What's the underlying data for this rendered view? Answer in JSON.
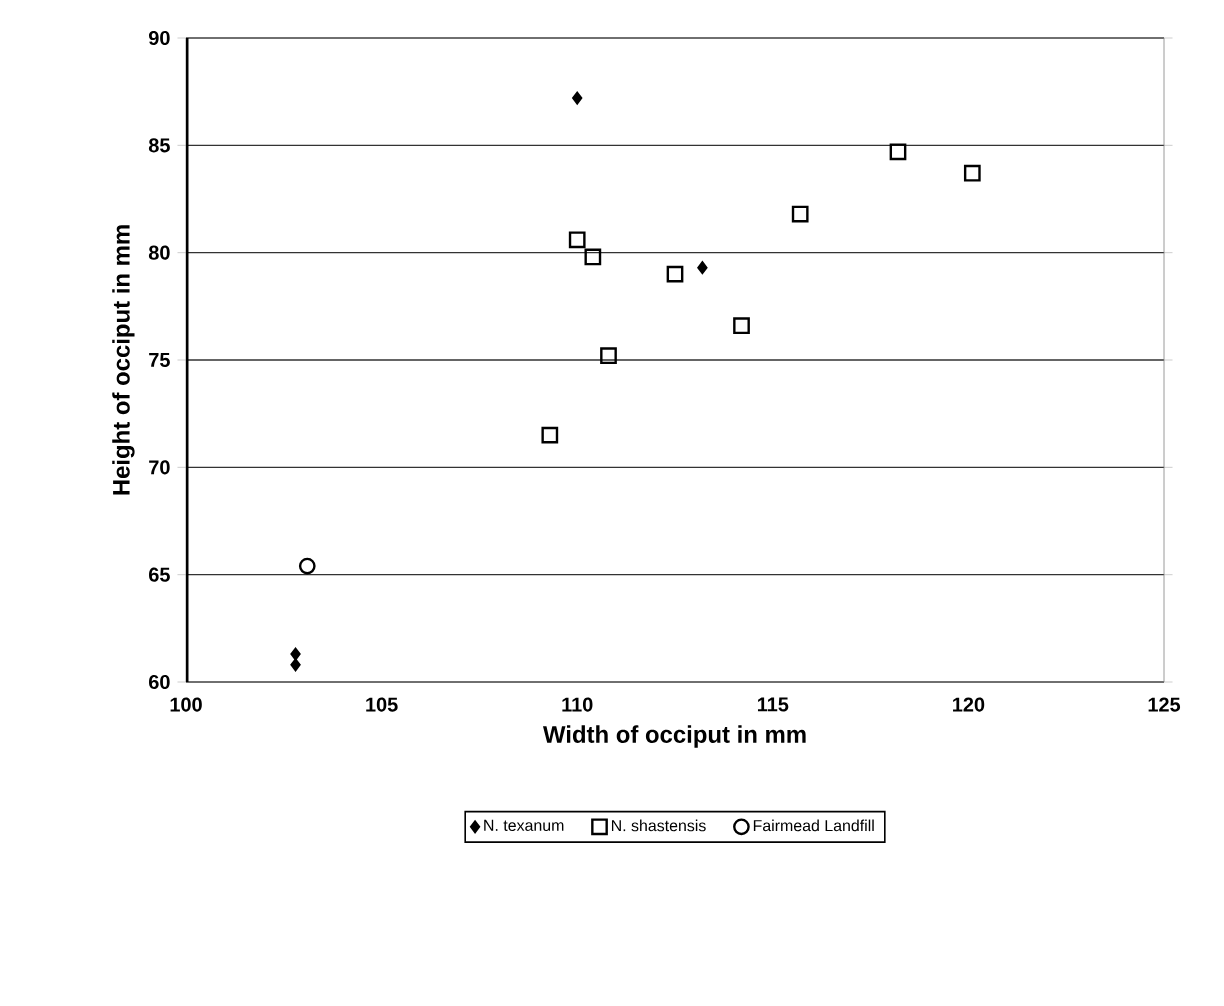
{
  "chart_data": {
    "type": "scatter",
    "xlabel": "Width of occiput in mm",
    "ylabel": "Height of occiput in mm",
    "xlim": [
      100,
      125
    ],
    "xticks": [
      100,
      105,
      110,
      115,
      120,
      125
    ],
    "ylim": [
      60,
      90
    ],
    "yticks": [
      60,
      65,
      70,
      75,
      80,
      85,
      90
    ],
    "grid": "y",
    "legend": "bottom",
    "series": [
      {
        "name": "N. texanum",
        "color": "#000000",
        "marker": "diamond",
        "x": [
          110.0,
          113.2,
          102.8,
          102.8
        ],
        "values": [
          87.2,
          79.3,
          61.3,
          60.8
        ]
      },
      {
        "name": "N. shastensis",
        "color": "#000000",
        "marker": "square",
        "x": [
          110.0,
          110.4,
          112.5,
          114.2,
          110.8,
          109.3,
          115.7,
          118.2,
          120.1
        ],
        "values": [
          80.6,
          79.8,
          79.0,
          76.6,
          75.2,
          71.5,
          81.8,
          84.7,
          83.7
        ]
      },
      {
        "name": "Fairmead Landfill",
        "color": "#000000",
        "marker": "circle",
        "x": [
          103.1
        ],
        "values": [
          65.4
        ]
      }
    ]
  }
}
